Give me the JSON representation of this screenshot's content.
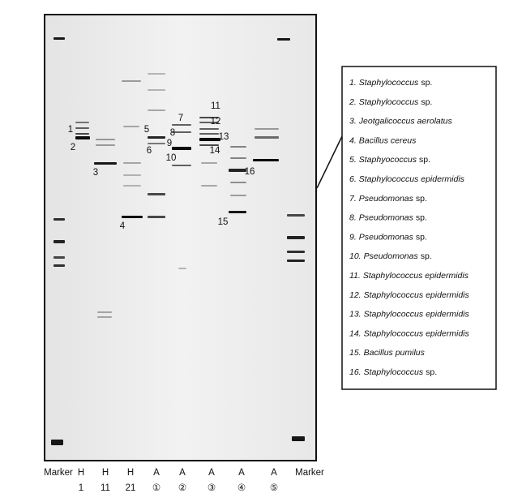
{
  "lanes": [
    {
      "top": "Marker"
    },
    {
      "top": "H",
      "bottom": "1"
    },
    {
      "top": "H",
      "bottom": "11"
    },
    {
      "top": "H",
      "bottom": "21"
    },
    {
      "top": "A",
      "bottom": "①"
    },
    {
      "top": "A",
      "bottom": "②"
    },
    {
      "top": "A",
      "bottom": "③"
    },
    {
      "top": "A",
      "bottom": "④"
    },
    {
      "top": "A",
      "bottom": "⑤"
    },
    {
      "top": "Marker"
    }
  ],
  "band_labels": [
    "1",
    "2",
    "3",
    "4",
    "5",
    "6",
    "7",
    "8",
    "9",
    "10",
    "11",
    "12",
    "13",
    "14",
    "15",
    "16"
  ],
  "legend": [
    {
      "num": "1.",
      "italic": "Staphylococcus",
      "plain": "sp."
    },
    {
      "num": "2.",
      "italic": "Staphylococcus",
      "plain": "sp."
    },
    {
      "num": "3.",
      "italic": "Jeotgalicoccus aerolatus"
    },
    {
      "num": "4.",
      "italic": "Bacillus cereus"
    },
    {
      "num": "5.",
      "italic": "Staphyococcus",
      "plain": "sp."
    },
    {
      "num": "6.",
      "italic": "Staphylococcus epidermidis"
    },
    {
      "num": "7.",
      "italic": "Pseudomonas",
      "plain": "sp."
    },
    {
      "num": "8.",
      "italic": "Pseudomonas",
      "plain": "sp."
    },
    {
      "num": "9.",
      "italic": "Pseudomonas",
      "plain": "sp."
    },
    {
      "num": "10.",
      "italic": "Pseudomonas",
      "plain": "sp."
    },
    {
      "num": "11.",
      "italic": "Staphylococcus epidermidis"
    },
    {
      "num": "12.",
      "italic": "Staphylococcus epidermidis"
    },
    {
      "num": "13.",
      "italic": "Staphylococcus epidermidis"
    },
    {
      "num": "14.",
      "italic": "Staphylococcus epidermidis"
    },
    {
      "num": "15.",
      "italic": "Bacillus pumilus"
    },
    {
      "num": "16.",
      "italic": "Staphylococcus",
      "plain": "sp."
    }
  ]
}
